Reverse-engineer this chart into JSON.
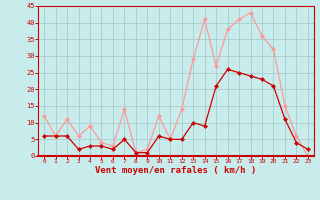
{
  "x": [
    0,
    1,
    2,
    3,
    4,
    5,
    6,
    7,
    8,
    9,
    10,
    11,
    12,
    13,
    14,
    15,
    16,
    17,
    18,
    19,
    20,
    21,
    22,
    23
  ],
  "wind_mean": [
    6,
    6,
    6,
    2,
    3,
    3,
    2,
    5,
    1,
    1,
    6,
    5,
    5,
    10,
    9,
    21,
    26,
    25,
    24,
    23,
    21,
    11,
    4,
    2
  ],
  "wind_gust": [
    12,
    6,
    11,
    6,
    9,
    4,
    3,
    14,
    1,
    2,
    12,
    5,
    14,
    29,
    41,
    27,
    38,
    41,
    43,
    36,
    32,
    15,
    6,
    0
  ],
  "mean_color": "#cc0000",
  "gust_color": "#ff9999",
  "background_color": "#c8ecec",
  "grid_color": "#aacccc",
  "axis_color": "#cc0000",
  "xlabel": "Vent moyen/en rafales ( km/h )",
  "xlabel_color": "#cc0000",
  "ylim": [
    0,
    45
  ],
  "yticks": [
    0,
    5,
    10,
    15,
    20,
    25,
    30,
    35,
    40,
    45
  ],
  "xticks": [
    0,
    1,
    2,
    3,
    4,
    5,
    6,
    7,
    8,
    9,
    10,
    11,
    12,
    13,
    14,
    15,
    16,
    17,
    18,
    19,
    20,
    21,
    22,
    23
  ],
  "tick_color": "#cc0000",
  "marker": "D",
  "marker_size": 2,
  "line_width": 0.9
}
